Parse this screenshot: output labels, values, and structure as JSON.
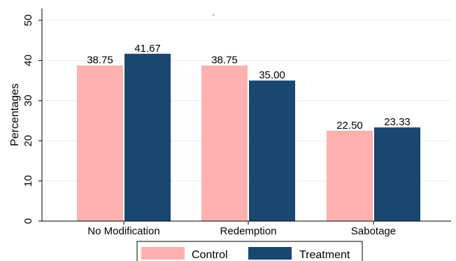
{
  "chart_data": {
    "type": "bar",
    "categories": [
      "No Modification",
      "Redemption",
      "Sabotage"
    ],
    "series": [
      {
        "name": "Control",
        "values": [
          38.75,
          38.75,
          22.5
        ],
        "labels": [
          "38.75",
          "38.75",
          "22.50"
        ],
        "color": "#ffb0b0"
      },
      {
        "name": "Treatment",
        "values": [
          41.67,
          35.0,
          23.33
        ],
        "labels": [
          "41.67",
          "35.00",
          "23.33"
        ],
        "color": "#1a476f"
      }
    ],
    "title": "",
    "title_mark": ".",
    "xlabel": "",
    "ylabel": "Percentages",
    "ylim": [
      0,
      50
    ],
    "yticks": [
      0,
      10,
      20,
      30,
      40,
      50
    ],
    "grid": true,
    "legend_position": "bottom"
  }
}
